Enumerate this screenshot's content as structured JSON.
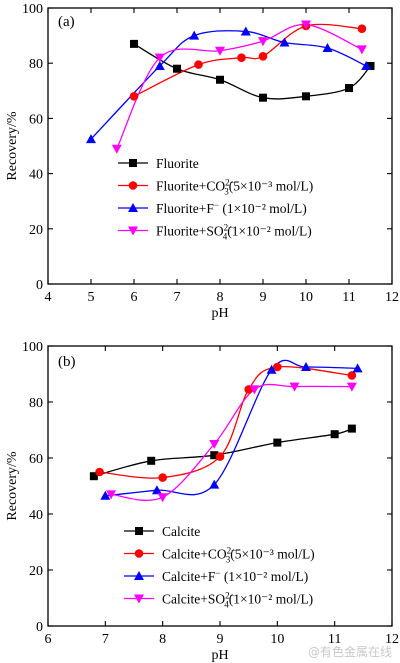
{
  "chart_data": [
    {
      "type": "line",
      "panel_label": "(a)",
      "xlabel": "pH",
      "ylabel": "Recovery/%",
      "xlim": [
        4,
        12
      ],
      "ylim": [
        0,
        100
      ],
      "xticks": [
        4,
        5,
        6,
        7,
        8,
        9,
        10,
        11,
        12
      ],
      "yticks": [
        0,
        20,
        40,
        60,
        80,
        100
      ],
      "grid": false,
      "legend_position": "bottom-right",
      "series": [
        {
          "name": "Fluorite",
          "name_sup": "",
          "name_sub": "",
          "name_rest": "",
          "color": "#000000",
          "marker": "square",
          "x": [
            6.0,
            7.0,
            8.0,
            9.0,
            10.0,
            11.0,
            11.5
          ],
          "y": [
            87,
            78,
            74,
            67.5,
            68,
            71,
            79
          ]
        },
        {
          "name": "Fluorite+CO",
          "name_sub": "3",
          "name_sup": "2−",
          "name_rest": "(5×10⁻³ mol/L)",
          "color": "#ff0000",
          "marker": "circle",
          "x": [
            6.0,
            7.5,
            8.5,
            9.0,
            10.0,
            11.3
          ],
          "y": [
            68,
            79.5,
            82,
            82.5,
            93.5,
            92.5
          ]
        },
        {
          "name": "Fluorite+F",
          "name_sub": "",
          "name_sup": "−",
          "name_rest": " (1×10⁻² mol/L)",
          "color": "#0000ff",
          "marker": "triangle-up",
          "x": [
            5.0,
            6.6,
            7.4,
            8.6,
            9.5,
            10.5,
            11.4
          ],
          "y": [
            52.5,
            79,
            90,
            91.5,
            87.5,
            85.5,
            79
          ]
        },
        {
          "name": "Fluorite+SO",
          "name_sub": "4",
          "name_sup": "2−",
          "name_rest": "(1×10⁻² mol/L)",
          "color": "#ff00ff",
          "marker": "triangle-down",
          "x": [
            5.6,
            6.6,
            8.0,
            9.0,
            10.0,
            11.3
          ],
          "y": [
            49,
            82,
            84.5,
            88,
            94,
            85
          ]
        }
      ]
    },
    {
      "type": "line",
      "panel_label": "(b)",
      "xlabel": "pH",
      "ylabel": "Recovery/%",
      "xlim": [
        6,
        12
      ],
      "ylim": [
        0,
        100
      ],
      "xticks": [
        6,
        7,
        8,
        9,
        10,
        11,
        12
      ],
      "yticks": [
        0,
        20,
        40,
        60,
        80,
        100
      ],
      "grid": false,
      "legend_position": "bottom-right",
      "series": [
        {
          "name": "Calcite",
          "name_sup": "",
          "name_sub": "",
          "name_rest": "",
          "color": "#000000",
          "marker": "square",
          "x": [
            6.8,
            7.8,
            8.9,
            10.0,
            11.0,
            11.3
          ],
          "y": [
            53.5,
            59,
            61,
            65.5,
            68.5,
            70.5
          ]
        },
        {
          "name": "Calcite+CO",
          "name_sub": "3",
          "name_sup": "2−",
          "name_rest": "(5×10⁻³ mol/L)",
          "color": "#ff0000",
          "marker": "circle",
          "x": [
            6.9,
            8.0,
            9.0,
            9.5,
            10.0,
            11.3
          ],
          "y": [
            55,
            53,
            60.5,
            84.5,
            92.5,
            89.5
          ]
        },
        {
          "name": "Calcite+F",
          "name_sub": "",
          "name_sup": "−",
          "name_rest": " (1×10⁻² mol/L)",
          "color": "#0000ff",
          "marker": "triangle-up",
          "x": [
            7.0,
            7.9,
            8.9,
            9.9,
            10.5,
            11.4
          ],
          "y": [
            46.5,
            48.5,
            50.5,
            91.5,
            92.5,
            92
          ]
        },
        {
          "name": "Calcite+SO",
          "name_sub": "4",
          "name_sup": "2−",
          "name_rest": "(1×10⁻² mol/L)",
          "color": "#ff00ff",
          "marker": "triangle-down",
          "x": [
            7.1,
            8.0,
            8.9,
            9.6,
            10.3,
            11.3
          ],
          "y": [
            47,
            46,
            65,
            84.5,
            85.5,
            85.5
          ]
        }
      ]
    }
  ],
  "watermark": "@有色金属在线"
}
